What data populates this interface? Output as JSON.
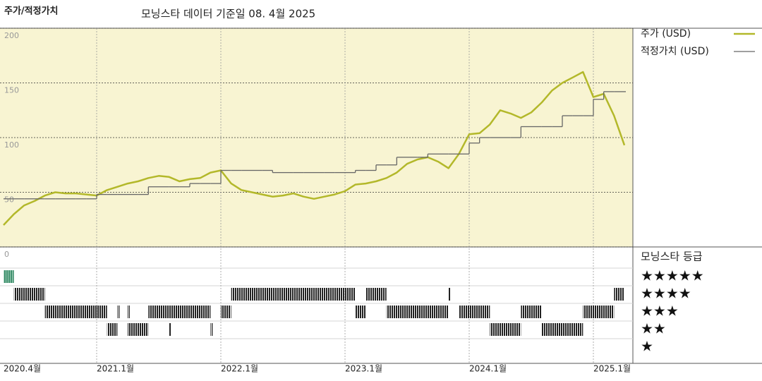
{
  "chart_data": {
    "type": "line",
    "title": "주가/적정가치",
    "subtitle": "모닝스타 데이터 기준일 08. 4월 2025",
    "x": [
      "2020-04",
      "2020-05",
      "2020-06",
      "2020-07",
      "2020-08",
      "2020-09",
      "2020-10",
      "2020-11",
      "2020-12",
      "2021-01",
      "2021-02",
      "2021-03",
      "2021-04",
      "2021-05",
      "2021-06",
      "2021-07",
      "2021-08",
      "2021-09",
      "2021-10",
      "2021-11",
      "2021-12",
      "2022-01",
      "2022-02",
      "2022-03",
      "2022-04",
      "2022-05",
      "2022-06",
      "2022-07",
      "2022-08",
      "2022-09",
      "2022-10",
      "2022-11",
      "2022-12",
      "2023-01",
      "2023-02",
      "2023-03",
      "2023-04",
      "2023-05",
      "2023-06",
      "2023-07",
      "2023-08",
      "2023-09",
      "2023-10",
      "2023-11",
      "2023-12",
      "2024-01",
      "2024-02",
      "2024-03",
      "2024-04",
      "2024-05",
      "2024-06",
      "2024-07",
      "2024-08",
      "2024-09",
      "2024-10",
      "2024-11",
      "2024-12",
      "2025-01",
      "2025-02",
      "2025-03",
      "2025-04"
    ],
    "series": [
      {
        "name": "주가 (USD)",
        "color": "#b3b82a",
        "values": [
          20,
          30,
          38,
          42,
          47,
          50,
          49,
          49,
          48,
          47,
          52,
          55,
          58,
          60,
          63,
          65,
          64,
          60,
          62,
          63,
          68,
          70,
          58,
          52,
          50,
          48,
          46,
          47,
          49,
          46,
          44,
          46,
          48,
          51,
          57,
          58,
          60,
          63,
          68,
          76,
          80,
          82,
          78,
          72,
          85,
          103,
          104,
          112,
          125,
          122,
          118,
          123,
          132,
          143,
          150,
          155,
          160,
          137,
          140,
          120,
          93
        ]
      },
      {
        "name": "적정가치 (USD)",
        "color": "#666666",
        "step": true,
        "values": [
          44,
          44,
          44,
          44,
          44,
          44,
          44,
          44,
          44,
          48,
          48,
          48,
          48,
          48,
          55,
          55,
          55,
          55,
          58,
          58,
          58,
          70,
          70,
          70,
          70,
          70,
          68,
          68,
          68,
          68,
          68,
          68,
          68,
          68,
          70,
          70,
          75,
          75,
          82,
          82,
          82,
          85,
          85,
          85,
          85,
          95,
          100,
          100,
          100,
          100,
          110,
          110,
          110,
          110,
          120,
          120,
          120,
          135,
          142,
          142,
          142
        ]
      }
    ],
    "ylim": [
      0,
      200
    ],
    "yticks": [
      0,
      50,
      100,
      150,
      200
    ],
    "xticks": [
      {
        "value": "2020-04",
        "label": "2020.4월"
      },
      {
        "value": "2021-01",
        "label": "2021.1월"
      },
      {
        "value": "2022-01",
        "label": "2022.1월"
      },
      {
        "value": "2023-01",
        "label": "2023.1월"
      },
      {
        "value": "2024-01",
        "label": "2024.1월"
      },
      {
        "value": "2025-01",
        "label": "2025.1월"
      }
    ],
    "grid": true,
    "rating_title": "모닝스타 등급",
    "rating_legend": [
      "★★★★★",
      "★★★★",
      "★★★",
      "★★",
      "★"
    ],
    "rating_colors": {
      "5": "#3d8f6c",
      "other": "#222222"
    },
    "ratings": [
      {
        "stars": 5,
        "start": "2020-04",
        "end": "2020-05"
      },
      {
        "stars": 4,
        "start": "2020-05",
        "end": "2020-08"
      },
      {
        "stars": 3,
        "start": "2020-08",
        "end": "2021-02"
      },
      {
        "stars": 2,
        "start": "2021-02",
        "end": "2021-03"
      },
      {
        "stars": 3,
        "start": "2021-03",
        "end": "2021-03"
      },
      {
        "stars": 3,
        "start": "2021-04",
        "end": "2021-04"
      },
      {
        "stars": 2,
        "start": "2021-04",
        "end": "2021-06"
      },
      {
        "stars": 3,
        "start": "2021-06",
        "end": "2021-12"
      },
      {
        "stars": 2,
        "start": "2021-08",
        "end": "2021-08"
      },
      {
        "stars": 2,
        "start": "2021-12",
        "end": "2021-12"
      },
      {
        "stars": 3,
        "start": "2022-01",
        "end": "2022-02"
      },
      {
        "stars": 4,
        "start": "2022-02",
        "end": "2023-02"
      },
      {
        "stars": 3,
        "start": "2023-02",
        "end": "2023-03"
      },
      {
        "stars": 4,
        "start": "2023-03",
        "end": "2023-05"
      },
      {
        "stars": 3,
        "start": "2023-05",
        "end": "2023-11"
      },
      {
        "stars": 4,
        "start": "2023-11",
        "end": "2023-11"
      },
      {
        "stars": 3,
        "start": "2023-12",
        "end": "2024-03"
      },
      {
        "stars": 2,
        "start": "2024-03",
        "end": "2024-06"
      },
      {
        "stars": 3,
        "start": "2024-06",
        "end": "2024-08"
      },
      {
        "stars": 2,
        "start": "2024-08",
        "end": "2024-12"
      },
      {
        "stars": 3,
        "start": "2024-12",
        "end": "2025-03"
      },
      {
        "stars": 4,
        "start": "2025-03",
        "end": "2025-04"
      }
    ]
  }
}
